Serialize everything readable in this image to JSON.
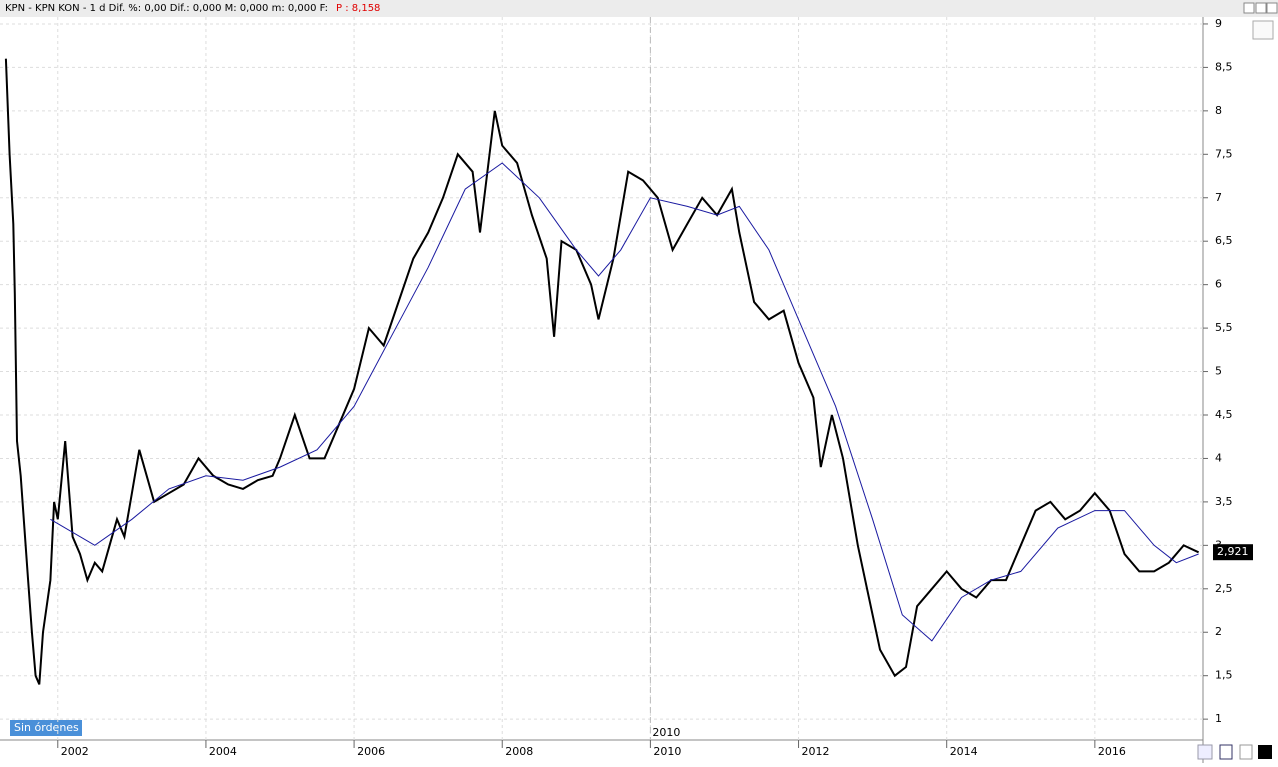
{
  "header": {
    "text": "KPN - KPN KON -  1 d Dif. %: 0,00 Dif.: 0,000 M: 0,000 m: 0,000 F:",
    "price": "P : 8,158"
  },
  "status": "Sin órdenes",
  "chart_data": {
    "type": "line",
    "xlim": [
      2001.22,
      2017.46
    ],
    "xticks": [
      2002,
      2004,
      2006,
      2008,
      2010,
      2012,
      2014,
      2016
    ],
    "ylim": [
      0.76,
      9.08
    ],
    "yticks": [
      {
        "value": 1,
        "label": "1"
      },
      {
        "value": 1.5,
        "label": "1,5"
      },
      {
        "value": 2,
        "label": "2"
      },
      {
        "value": 2.5,
        "label": "2,5"
      },
      {
        "value": 3,
        "label": "3"
      },
      {
        "value": 3.5,
        "label": "3,5"
      },
      {
        "value": 4,
        "label": "4"
      },
      {
        "value": 4.5,
        "label": "4,5"
      },
      {
        "value": 5,
        "label": "5"
      },
      {
        "value": 5.5,
        "label": "5,5"
      },
      {
        "value": 6,
        "label": "6"
      },
      {
        "value": 6.5,
        "label": "6,5"
      },
      {
        "value": 7,
        "label": "7"
      },
      {
        "value": 7.5,
        "label": "7,5"
      },
      {
        "value": 8,
        "label": "8"
      },
      {
        "value": 8.5,
        "label": "8,5"
      },
      {
        "value": 9,
        "label": "9"
      }
    ],
    "grid": true,
    "marker": {
      "x": 2010,
      "label": "2010"
    },
    "last_label": {
      "value": 2.921,
      "label": "2,921"
    },
    "series": [
      {
        "color": "#000000",
        "width": 2,
        "x": [
          2001.3,
          2001.35,
          2001.4,
          2001.42,
          2001.45,
          2001.5,
          2001.55,
          2001.6,
          2001.65,
          2001.7,
          2001.75,
          2001.8,
          2001.9,
          2001.95,
          2002.0,
          2002.1,
          2002.2,
          2002.3,
          2002.4,
          2002.5,
          2002.6,
          2002.7,
          2002.8,
          2002.9,
          2003.0,
          2003.1,
          2003.2,
          2003.3,
          2003.5,
          2003.7,
          2003.9,
          2004.1,
          2004.3,
          2004.5,
          2004.7,
          2004.9,
          2005.0,
          2005.2,
          2005.4,
          2005.6,
          2005.8,
          2006.0,
          2006.2,
          2006.4,
          2006.6,
          2006.8,
          2007.0,
          2007.2,
          2007.4,
          2007.6,
          2007.7,
          2007.9,
          2008.0,
          2008.2,
          2008.4,
          2008.6,
          2008.7,
          2008.8,
          2009.0,
          2009.2,
          2009.3,
          2009.5,
          2009.7,
          2009.9,
          2010.1,
          2010.3,
          2010.5,
          2010.7,
          2010.9,
          2011.1,
          2011.2,
          2011.4,
          2011.6,
          2011.8,
          2012.0,
          2012.2,
          2012.3,
          2012.45,
          2012.6,
          2012.8,
          2012.95,
          2013.1,
          2013.3,
          2013.45,
          2013.6,
          2013.8,
          2014.0,
          2014.2,
          2014.4,
          2014.6,
          2014.8,
          2015.0,
          2015.2,
          2015.4,
          2015.6,
          2015.8,
          2016.0,
          2016.2,
          2016.4,
          2016.6,
          2016.8,
          2017.0,
          2017.2,
          2017.4
        ],
        "values": [
          8.6,
          7.5,
          6.7,
          5.9,
          4.2,
          3.8,
          3.2,
          2.6,
          2.0,
          1.5,
          1.4,
          2.0,
          2.6,
          3.5,
          3.3,
          4.2,
          3.1,
          2.9,
          2.6,
          2.8,
          2.7,
          3.0,
          3.3,
          3.1,
          3.6,
          4.1,
          3.8,
          3.5,
          3.6,
          3.7,
          4.0,
          3.8,
          3.7,
          3.65,
          3.75,
          3.8,
          4.0,
          4.5,
          4.0,
          4.0,
          4.4,
          4.8,
          5.5,
          5.3,
          5.8,
          6.3,
          6.6,
          7.0,
          7.5,
          7.3,
          6.6,
          8.0,
          7.6,
          7.4,
          6.8,
          6.3,
          5.4,
          6.5,
          6.4,
          6.0,
          5.6,
          6.3,
          7.3,
          7.2,
          7.0,
          6.4,
          6.7,
          7.0,
          6.8,
          7.1,
          6.6,
          5.8,
          5.6,
          5.7,
          5.1,
          4.7,
          3.9,
          4.5,
          4.0,
          3.0,
          2.4,
          1.8,
          1.5,
          1.6,
          2.3,
          2.5,
          2.7,
          2.5,
          2.4,
          2.6,
          2.6,
          3.0,
          3.4,
          3.5,
          3.3,
          3.4,
          3.6,
          3.4,
          2.9,
          2.7,
          2.7,
          2.8,
          3.0,
          2.92
        ]
      },
      {
        "color": "#1a1aa0",
        "width": 1,
        "x": [
          2001.9,
          2002.5,
          2003.0,
          2003.5,
          2004.0,
          2004.5,
          2005.0,
          2005.5,
          2006.0,
          2006.5,
          2007.0,
          2007.5,
          2008.0,
          2008.5,
          2009.0,
          2009.3,
          2009.6,
          2010.0,
          2010.5,
          2010.9,
          2011.2,
          2011.6,
          2012.0,
          2012.5,
          2013.0,
          2013.4,
          2013.8,
          2014.2,
          2014.6,
          2015.0,
          2015.5,
          2016.0,
          2016.4,
          2016.8,
          2017.1,
          2017.4
        ],
        "values": [
          3.3,
          3.0,
          3.3,
          3.65,
          3.8,
          3.75,
          3.9,
          4.1,
          4.6,
          5.4,
          6.2,
          7.1,
          7.4,
          7.0,
          6.4,
          6.1,
          6.4,
          7.0,
          6.9,
          6.8,
          6.9,
          6.4,
          5.6,
          4.6,
          3.3,
          2.2,
          1.9,
          2.4,
          2.6,
          2.7,
          3.2,
          3.4,
          3.4,
          3.0,
          2.8,
          2.9
        ]
      }
    ]
  }
}
